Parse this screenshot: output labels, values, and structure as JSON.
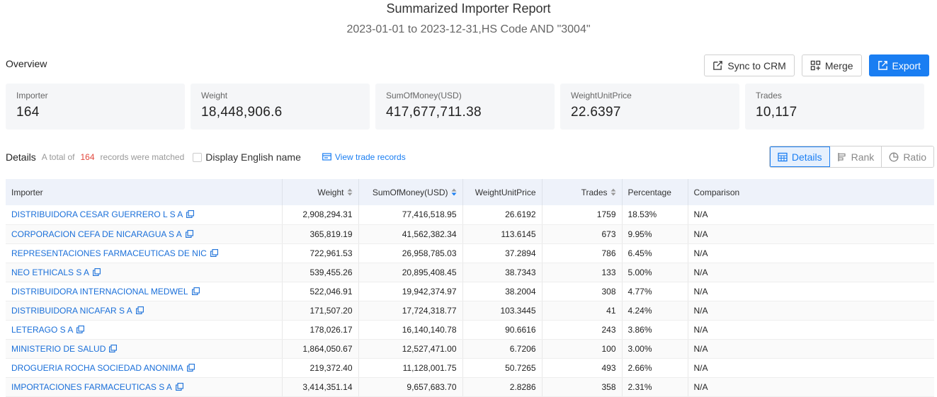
{
  "header": {
    "title": "Summarized Importer Report",
    "subtitle": "2023-01-01 to 2023-12-31,HS Code AND \"3004\""
  },
  "overview": {
    "label": "Overview",
    "actions": {
      "sync": "Sync to CRM",
      "merge": "Merge",
      "export": "Export"
    },
    "stats": [
      {
        "label": "Importer",
        "value": "164"
      },
      {
        "label": "Weight",
        "value": "18,448,906.6"
      },
      {
        "label": "SumOfMoney(USD)",
        "value": "417,677,711.38"
      },
      {
        "label": "WeightUnitPrice",
        "value": "22.6397"
      },
      {
        "label": "Trades",
        "value": "10,117"
      }
    ]
  },
  "details": {
    "title": "Details",
    "total_prefix": "A total of",
    "total_count": "164",
    "total_suffix": "records were matched",
    "english_name_label": "Display English name",
    "view_trade_records": "View trade records",
    "views": {
      "details": "Details",
      "rank": "Rank",
      "ratio": "Ratio"
    }
  },
  "table": {
    "columns": {
      "importer": "Importer",
      "weight": "Weight",
      "money": "SumOfMoney(USD)",
      "unit_price": "WeightUnitPrice",
      "trades": "Trades",
      "percentage": "Percentage",
      "comparison": "Comparison"
    },
    "rows": [
      {
        "importer": "DISTRIBUIDORA CESAR GUERRERO L S A",
        "weight": "2,908,294.31",
        "money": "77,416,518.95",
        "unit_price": "26.6192",
        "trades": "1759",
        "percentage": "18.53%",
        "comparison": "N/A"
      },
      {
        "importer": "CORPORACION CEFA DE NICARAGUA S A",
        "weight": "365,819.19",
        "money": "41,562,382.34",
        "unit_price": "113.6145",
        "trades": "673",
        "percentage": "9.95%",
        "comparison": "N/A"
      },
      {
        "importer": "REPRESENTACIONES FARMACEUTICAS DE NIC",
        "weight": "722,961.53",
        "money": "26,958,785.03",
        "unit_price": "37.2894",
        "trades": "786",
        "percentage": "6.45%",
        "comparison": "N/A"
      },
      {
        "importer": "NEO ETHICALS S A",
        "weight": "539,455.26",
        "money": "20,895,408.45",
        "unit_price": "38.7343",
        "trades": "133",
        "percentage": "5.00%",
        "comparison": "N/A"
      },
      {
        "importer": "DISTRIBUIDORA INTERNACIONAL MEDWEL",
        "weight": "522,046.91",
        "money": "19,942,374.97",
        "unit_price": "38.2004",
        "trades": "308",
        "percentage": "4.77%",
        "comparison": "N/A"
      },
      {
        "importer": "DISTRIBUIDORA NICAFAR S A",
        "weight": "171,507.20",
        "money": "17,724,318.77",
        "unit_price": "103.3445",
        "trades": "41",
        "percentage": "4.24%",
        "comparison": "N/A"
      },
      {
        "importer": "LETERAGO S A",
        "weight": "178,026.17",
        "money": "16,140,140.78",
        "unit_price": "90.6616",
        "trades": "243",
        "percentage": "3.86%",
        "comparison": "N/A"
      },
      {
        "importer": "MINISTERIO DE SALUD",
        "weight": "1,864,050.67",
        "money": "12,527,471.00",
        "unit_price": "6.7206",
        "trades": "100",
        "percentage": "3.00%",
        "comparison": "N/A"
      },
      {
        "importer": "DROGUERIA ROCHA SOCIEDAD ANONIMA",
        "weight": "219,372.40",
        "money": "11,128,001.75",
        "unit_price": "50.7265",
        "trades": "493",
        "percentage": "2.66%",
        "comparison": "N/A"
      },
      {
        "importer": "IMPORTACIONES FARMACEUTICAS S A",
        "weight": "3,414,351.14",
        "money": "9,657,683.70",
        "unit_price": "2.8286",
        "trades": "358",
        "percentage": "2.31%",
        "comparison": "N/A"
      }
    ]
  },
  "colors": {
    "accent": "#1a7ef2",
    "count": "#e2483d",
    "header_bg": "#eef2fa"
  }
}
